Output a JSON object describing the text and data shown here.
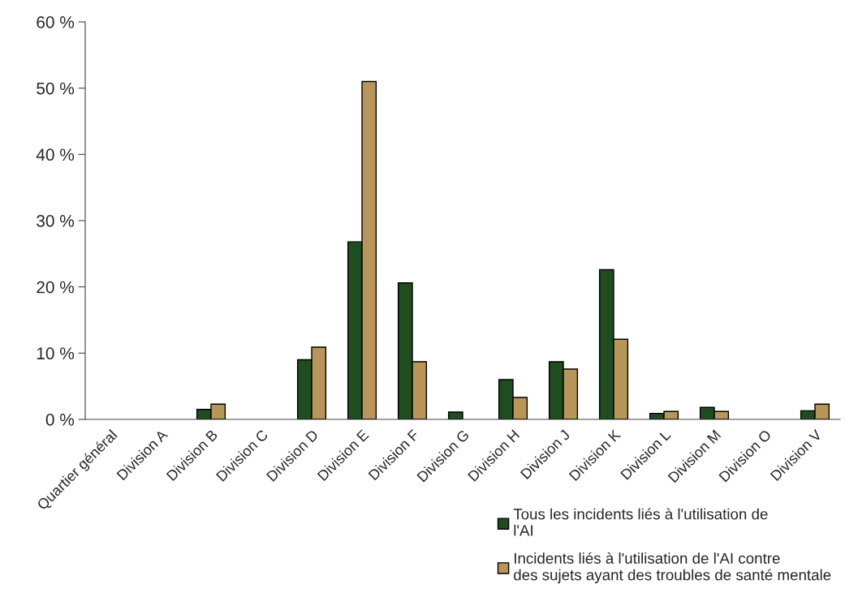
{
  "chart_data": {
    "type": "bar",
    "categories": [
      "Quartier général",
      "Division A",
      "Division B",
      "Division C",
      "Division D",
      "Division E",
      "Division F",
      "Division G",
      "Division H",
      "Division J",
      "Division K",
      "Division L",
      "Division M",
      "Division O",
      "Division V"
    ],
    "series": [
      {
        "name": "Tous les incidents liés à l'utilisation de l'AI",
        "color": "#1f4d1f",
        "values": [
          0,
          0,
          1.5,
          0,
          9.0,
          26.8,
          20.6,
          1.1,
          6.0,
          8.7,
          22.6,
          0.9,
          1.8,
          0,
          1.3
        ]
      },
      {
        "name": "Incidents liés à l'utilisation de l'AI contre des sujets ayant des troubles de santé mentale",
        "color": "#b8965a",
        "values": [
          0,
          0,
          2.3,
          0,
          10.9,
          51.0,
          8.7,
          0,
          3.3,
          7.6,
          12.1,
          1.2,
          1.2,
          0,
          2.3
        ]
      }
    ],
    "ylim": [
      0,
      60
    ],
    "yticks": [
      {
        "value": 0,
        "label": "0 %"
      },
      {
        "value": 10,
        "label": "10 %"
      },
      {
        "value": 20,
        "label": "20 %"
      },
      {
        "value": 30,
        "label": "30 %"
      },
      {
        "value": 40,
        "label": "40 %"
      },
      {
        "value": 50,
        "label": "50 %"
      },
      {
        "value": 60,
        "label": "60 %"
      }
    ],
    "grid": false,
    "legend": "bottom right"
  }
}
